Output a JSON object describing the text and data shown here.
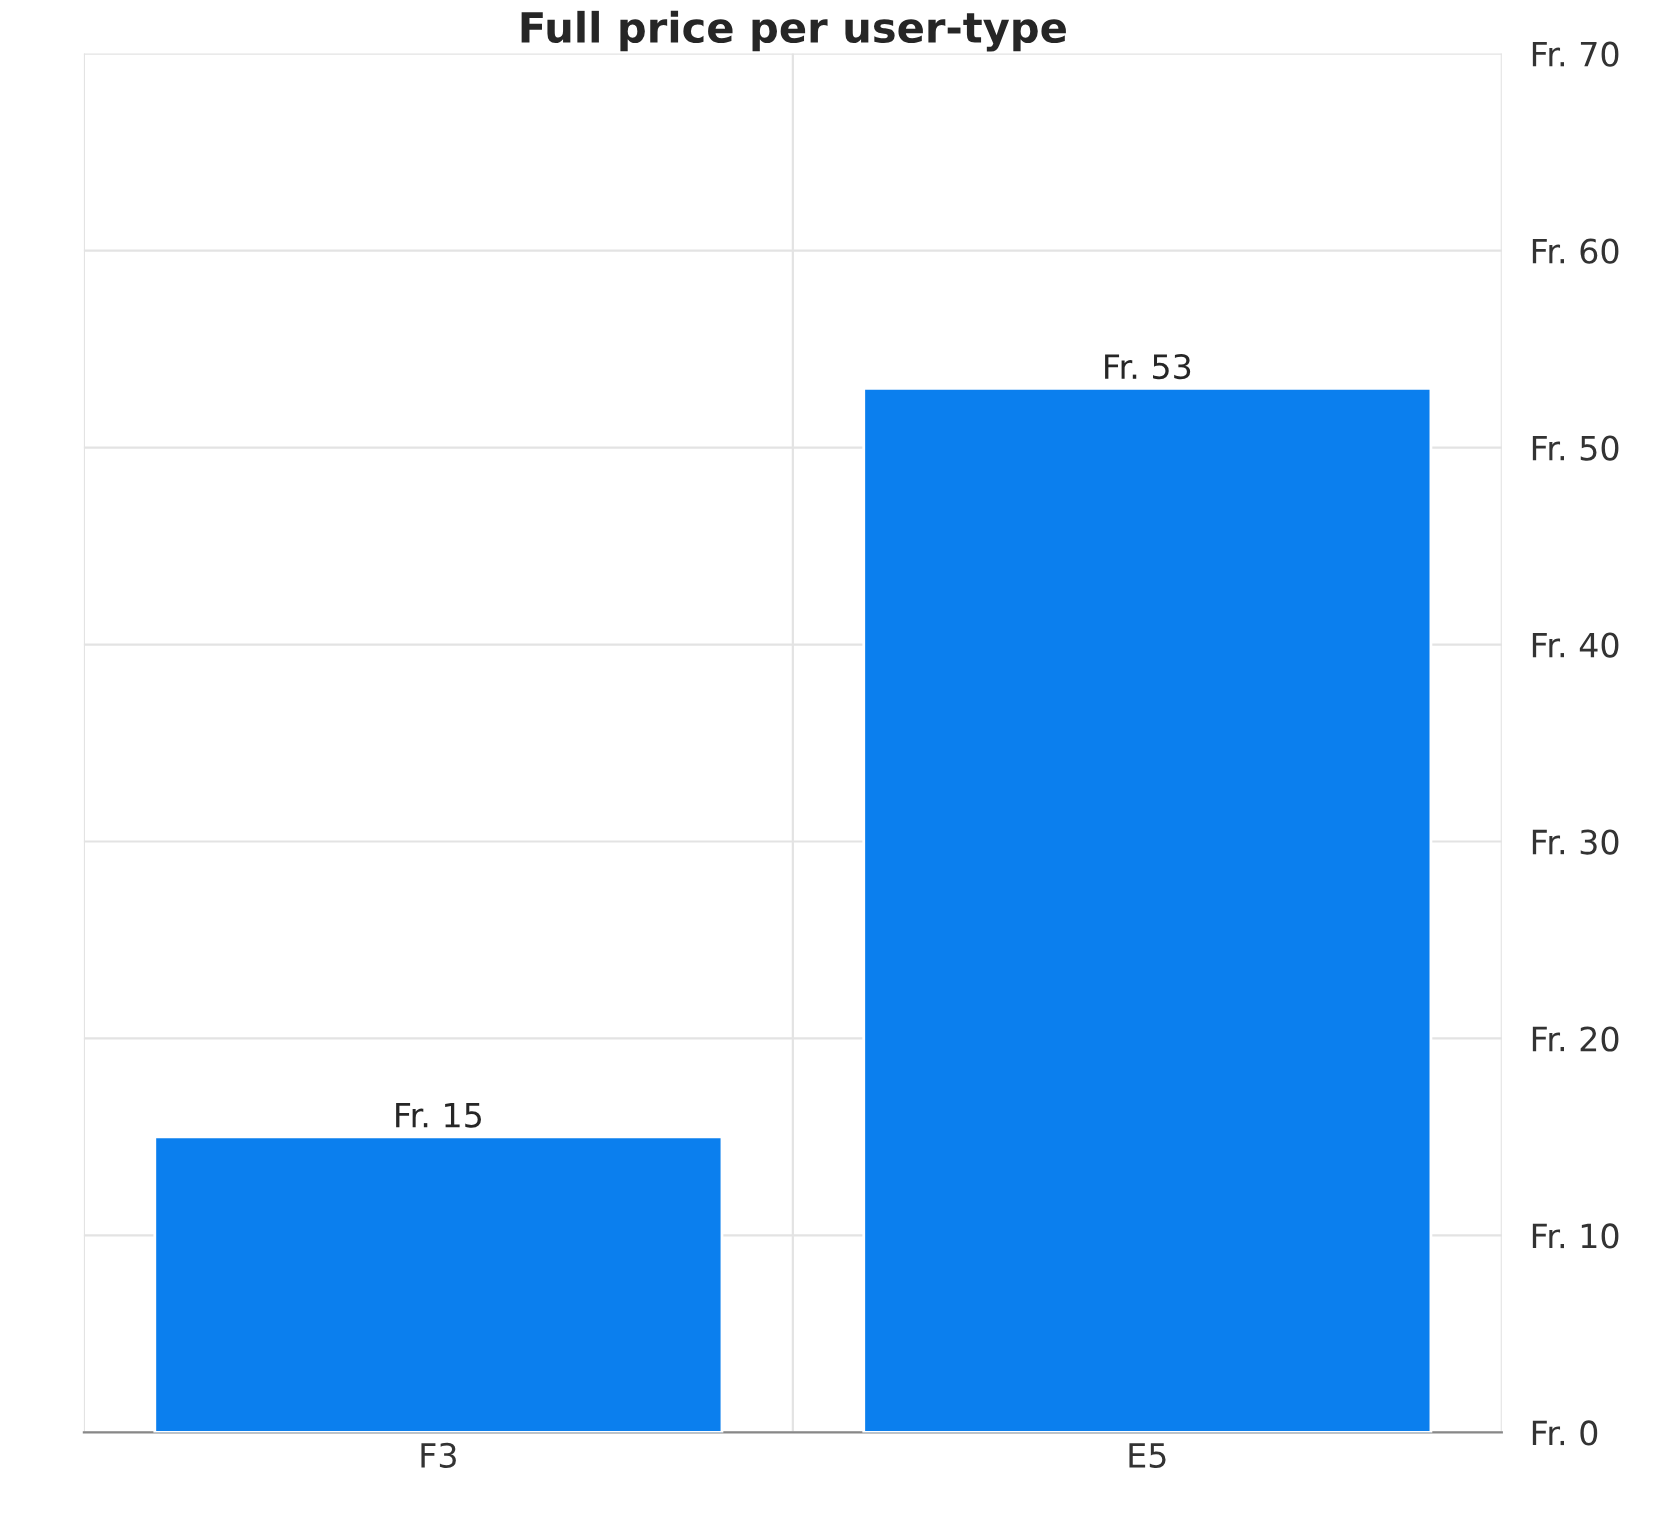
{
  "chart_data": {
    "type": "bar",
    "title": "Full price per user-type",
    "categories": [
      "F3",
      "E5"
    ],
    "values": [
      15,
      53
    ],
    "value_labels": [
      "Fr. 15",
      "Fr. 53"
    ],
    "color": "#0b7fee",
    "ylim": [
      0,
      70
    ],
    "yticks": [
      {
        "value": 0,
        "label": "Fr. 0"
      },
      {
        "value": 10,
        "label": "Fr. 10"
      },
      {
        "value": 20,
        "label": "Fr. 20"
      },
      {
        "value": 30,
        "label": "Fr. 30"
      },
      {
        "value": 40,
        "label": "Fr. 40"
      },
      {
        "value": 50,
        "label": "Fr. 50"
      },
      {
        "value": 60,
        "label": "Fr. 60"
      },
      {
        "value": 70,
        "label": "Fr. 70"
      }
    ],
    "grid": true
  }
}
